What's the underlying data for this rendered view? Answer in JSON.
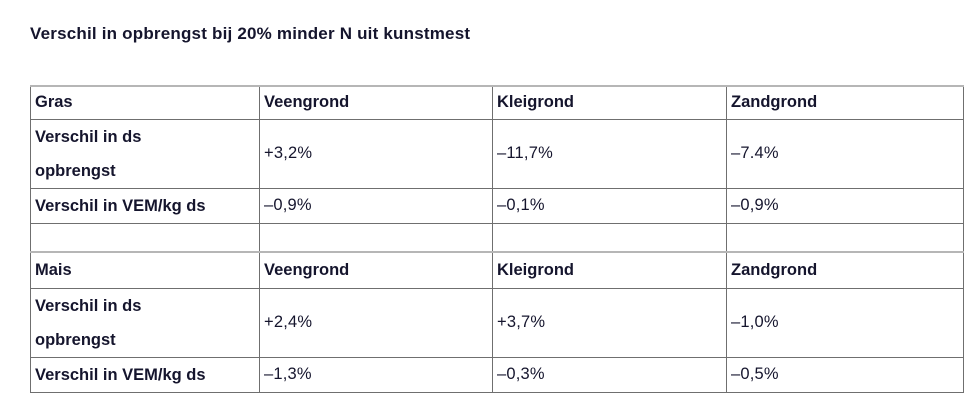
{
  "page": {
    "title": "Verschil in opbrengst bij 20% minder N uit kunstmest"
  },
  "colors": {
    "background": "#ffffff",
    "text": "#15152d",
    "border": "#6f6f6f",
    "border_light": "#b6b6b6"
  },
  "chart_data": {
    "type": "table",
    "title": "Verschil in opbrengst bij 20% minder N uit kunstmest",
    "sections": [
      {
        "name": "gras",
        "header": [
          "Gras",
          "Veengrond",
          "Kleigrond",
          "Zandgrond"
        ],
        "rows": [
          {
            "label": "Verschil in ds opbrengst",
            "values": [
              "+3,2%",
              "–11,7%",
              "–7.4%"
            ]
          },
          {
            "label": "Verschil in VEM/kg ds",
            "values": [
              "–0,9%",
              "–0,1%",
              "–0,9%"
            ]
          }
        ]
      },
      {
        "name": "mais",
        "header": [
          "Mais",
          "Veengrond",
          "Kleigrond",
          "Zandgrond"
        ],
        "rows": [
          {
            "label": "Verschil in ds opbrengst",
            "values": [
              "+2,4%",
              "+3,7%",
              "–1,0%"
            ]
          },
          {
            "label": "Verschil in VEM/kg ds",
            "values": [
              "–1,3%",
              "–0,3%",
              "–0,5%"
            ]
          }
        ]
      }
    ]
  }
}
